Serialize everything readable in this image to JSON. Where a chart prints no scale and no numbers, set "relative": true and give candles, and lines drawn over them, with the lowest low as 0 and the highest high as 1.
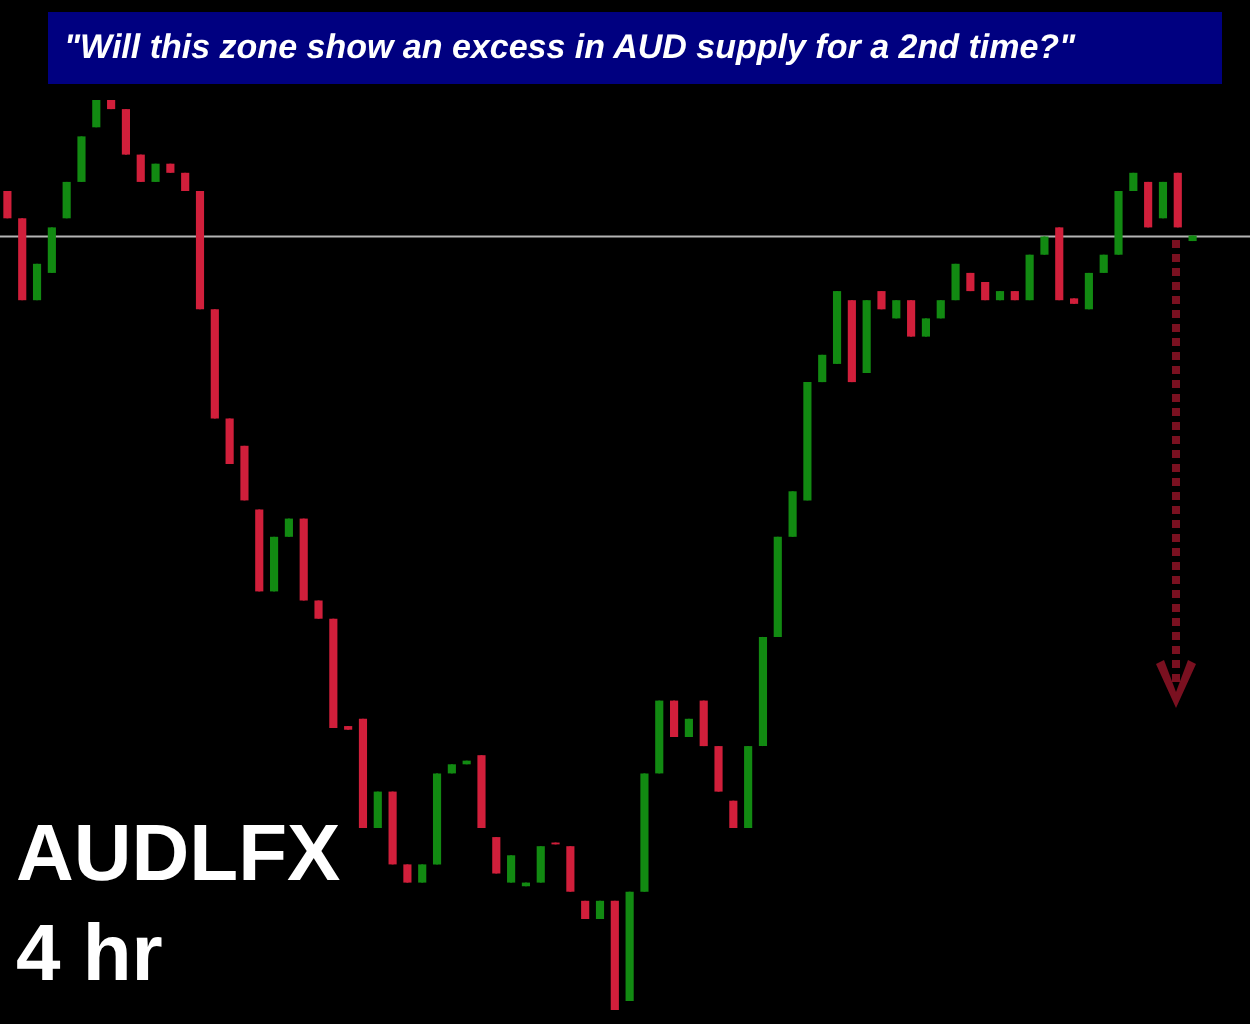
{
  "chart_data": {
    "type": "candlestick",
    "title": "AUDLFX",
    "subtitle": "4 hr",
    "annotations": [
      "\"Will this zone show an excess in AUD supply for a 2nd time?\""
    ],
    "relative": true,
    "categories": [
      null,
      null,
      null,
      null,
      null,
      null,
      null,
      null,
      null,
      null,
      null,
      null,
      null,
      null,
      null,
      null,
      null,
      null,
      null,
      null,
      null,
      null,
      null,
      null,
      null,
      null,
      null,
      null,
      null,
      null,
      null,
      null,
      null,
      null,
      null,
      null,
      null,
      null,
      null,
      null,
      null,
      null,
      null,
      null,
      null,
      null,
      null,
      null,
      null,
      null,
      null,
      null,
      null,
      null,
      null,
      null,
      null,
      null,
      null,
      null,
      null,
      null,
      null,
      null,
      null,
      null,
      null,
      null,
      null,
      null,
      null,
      null,
      null,
      null,
      null,
      null,
      null,
      null,
      null,
      null,
      null
    ],
    "ohlc": [
      [
        0.9,
        0.9,
        0.87,
        0.87
      ],
      [
        0.87,
        0.87,
        0.78,
        0.78
      ],
      [
        0.78,
        0.82,
        0.78,
        0.82
      ],
      [
        0.81,
        0.86,
        0.81,
        0.86
      ],
      [
        0.87,
        0.91,
        0.87,
        0.91
      ],
      [
        0.91,
        0.96,
        0.91,
        0.96
      ],
      [
        0.97,
        1.0,
        0.97,
        1.0
      ],
      [
        1.0,
        1.0,
        0.99,
        0.99
      ],
      [
        0.99,
        0.99,
        0.94,
        0.94
      ],
      [
        0.94,
        0.94,
        0.91,
        0.91
      ],
      [
        0.91,
        0.93,
        0.91,
        0.93
      ],
      [
        0.93,
        0.93,
        0.92,
        0.92
      ],
      [
        0.92,
        0.92,
        0.9,
        0.9
      ],
      [
        0.9,
        0.9,
        0.77,
        0.77
      ],
      [
        0.77,
        0.77,
        0.65,
        0.65
      ],
      [
        0.65,
        0.65,
        0.6,
        0.6
      ],
      [
        0.62,
        0.62,
        0.56,
        0.56
      ],
      [
        0.55,
        0.55,
        0.46,
        0.46
      ],
      [
        0.46,
        0.52,
        0.46,
        0.52
      ],
      [
        0.52,
        0.54,
        0.52,
        0.54
      ],
      [
        0.54,
        0.54,
        0.45,
        0.45
      ],
      [
        0.45,
        0.45,
        0.43,
        0.43
      ],
      [
        0.43,
        0.43,
        0.31,
        0.31
      ],
      [
        0.312,
        0.312,
        0.308,
        0.308
      ],
      [
        0.32,
        0.32,
        0.2,
        0.2
      ],
      [
        0.2,
        0.24,
        0.2,
        0.24
      ],
      [
        0.24,
        0.24,
        0.16,
        0.16
      ],
      [
        0.16,
        0.16,
        0.14,
        0.14
      ],
      [
        0.14,
        0.16,
        0.14,
        0.16
      ],
      [
        0.16,
        0.26,
        0.16,
        0.26
      ],
      [
        0.26,
        0.27,
        0.26,
        0.27
      ],
      [
        0.27,
        0.274,
        0.27,
        0.274
      ],
      [
        0.28,
        0.28,
        0.2,
        0.2
      ],
      [
        0.19,
        0.19,
        0.15,
        0.15
      ],
      [
        0.14,
        0.17,
        0.14,
        0.17
      ],
      [
        0.136,
        0.14,
        0.136,
        0.14
      ],
      [
        0.14,
        0.18,
        0.14,
        0.18
      ],
      [
        0.184,
        0.184,
        0.182,
        0.182
      ],
      [
        0.18,
        0.18,
        0.13,
        0.13
      ],
      [
        0.12,
        0.12,
        0.1,
        0.1
      ],
      [
        0.1,
        0.12,
        0.1,
        0.12
      ],
      [
        0.12,
        0.12,
        0.0,
        0.0
      ],
      [
        0.01,
        0.13,
        0.01,
        0.13
      ],
      [
        0.13,
        0.26,
        0.13,
        0.26
      ],
      [
        0.26,
        0.34,
        0.26,
        0.34
      ],
      [
        0.34,
        0.34,
        0.3,
        0.3
      ],
      [
        0.3,
        0.32,
        0.3,
        0.32
      ],
      [
        0.34,
        0.34,
        0.29,
        0.29
      ],
      [
        0.29,
        0.29,
        0.24,
        0.24
      ],
      [
        0.23,
        0.23,
        0.2,
        0.2
      ],
      [
        0.2,
        0.29,
        0.2,
        0.29
      ],
      [
        0.29,
        0.41,
        0.29,
        0.41
      ],
      [
        0.41,
        0.52,
        0.41,
        0.52
      ],
      [
        0.52,
        0.57,
        0.52,
        0.57
      ],
      [
        0.56,
        0.69,
        0.56,
        0.69
      ],
      [
        0.69,
        0.72,
        0.69,
        0.72
      ],
      [
        0.71,
        0.79,
        0.71,
        0.79
      ],
      [
        0.78,
        0.78,
        0.69,
        0.69
      ],
      [
        0.7,
        0.78,
        0.7,
        0.78
      ],
      [
        0.79,
        0.79,
        0.77,
        0.77
      ],
      [
        0.76,
        0.78,
        0.76,
        0.78
      ],
      [
        0.78,
        0.78,
        0.74,
        0.74
      ],
      [
        0.74,
        0.76,
        0.74,
        0.76
      ],
      [
        0.76,
        0.78,
        0.76,
        0.78
      ],
      [
        0.78,
        0.82,
        0.78,
        0.82
      ],
      [
        0.81,
        0.81,
        0.79,
        0.79
      ],
      [
        0.8,
        0.8,
        0.78,
        0.78
      ],
      [
        0.78,
        0.79,
        0.78,
        0.79
      ],
      [
        0.79,
        0.79,
        0.78,
        0.78
      ],
      [
        0.78,
        0.83,
        0.78,
        0.83
      ],
      [
        0.83,
        0.85,
        0.83,
        0.85
      ],
      [
        0.86,
        0.86,
        0.78,
        0.78
      ],
      [
        0.782,
        0.782,
        0.776,
        0.776
      ],
      [
        0.77,
        0.81,
        0.77,
        0.81
      ],
      [
        0.81,
        0.83,
        0.81,
        0.83
      ],
      [
        0.83,
        0.9,
        0.83,
        0.9
      ],
      [
        0.9,
        0.92,
        0.9,
        0.92
      ],
      [
        0.91,
        0.91,
        0.86,
        0.86
      ],
      [
        0.87,
        0.91,
        0.87,
        0.91
      ],
      [
        0.92,
        0.92,
        0.86,
        0.86
      ],
      [
        0.845,
        0.851,
        0.845,
        0.851
      ]
    ],
    "colors": [
      "#d11f3b",
      "#d11f3b",
      "#128a12",
      "#128a12",
      "#128a12",
      "#128a12",
      "#128a12",
      "#d11f3b",
      "#d11f3b",
      "#d11f3b",
      "#128a12",
      "#d11f3b",
      "#d11f3b",
      "#d11f3b",
      "#d11f3b",
      "#d11f3b",
      "#d11f3b",
      "#d11f3b",
      "#128a12",
      "#128a12",
      "#d11f3b",
      "#d11f3b",
      "#d11f3b",
      "#d11f3b",
      "#d11f3b",
      "#128a12",
      "#d11f3b",
      "#d11f3b",
      "#128a12",
      "#128a12",
      "#128a12",
      "#128a12",
      "#d11f3b",
      "#d11f3b",
      "#128a12",
      "#128a12",
      "#128a12",
      "#d11f3b",
      "#d11f3b",
      "#d11f3b",
      "#128a12",
      "#d11f3b",
      "#128a12",
      "#128a12",
      "#128a12",
      "#d11f3b",
      "#128a12",
      "#d11f3b",
      "#d11f3b",
      "#d11f3b",
      "#128a12",
      "#128a12",
      "#128a12",
      "#128a12",
      "#128a12",
      "#128a12",
      "#128a12",
      "#d11f3b",
      "#128a12",
      "#d11f3b",
      "#128a12",
      "#d11f3b",
      "#128a12",
      "#128a12",
      "#128a12",
      "#d11f3b",
      "#d11f3b",
      "#128a12",
      "#d11f3b",
      "#128a12",
      "#128a12",
      "#d11f3b",
      "#d11f3b",
      "#128a12",
      "#128a12",
      "#128a12",
      "#128a12",
      "#d11f3b",
      "#128a12",
      "#d11f3b",
      "#128a12"
    ],
    "ref_lines": [
      {
        "axis": "y",
        "value": 0.85,
        "color": "#b4b4b4"
      }
    ]
  }
}
